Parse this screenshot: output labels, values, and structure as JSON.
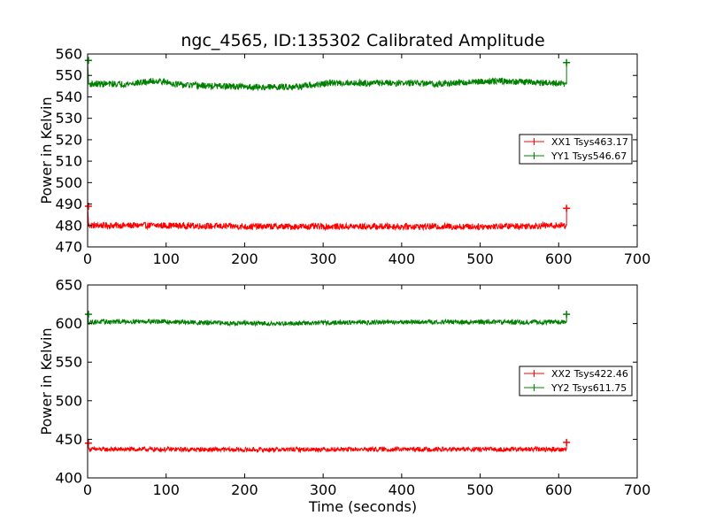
{
  "chart_data": [
    {
      "type": "line",
      "title": "ngc_4565, ID:135302 Calibrated Amplitude",
      "xlabel": "",
      "ylabel": "Power in Kelvin",
      "xlim": [
        0,
        700
      ],
      "ylim": [
        470,
        560
      ],
      "x_ticks": [
        0,
        100,
        200,
        300,
        400,
        500,
        600,
        700
      ],
      "y_ticks": [
        470,
        480,
        490,
        500,
        510,
        520,
        530,
        540,
        550,
        560
      ],
      "legend_position": "center-right",
      "grid": false,
      "series": [
        {
          "name": "XX1 Tsys463.17",
          "color": "#ff0000",
          "x_range": [
            0,
            610
          ],
          "baseline": [
            [
              0,
              480
            ],
            [
              100,
              480
            ],
            [
              200,
              479.5
            ],
            [
              300,
              479.5
            ],
            [
              400,
              479.5
            ],
            [
              500,
              479.5
            ],
            [
              600,
              480
            ],
            [
              610,
              480
            ]
          ],
          "noise": 1.5,
          "spikes": [
            [
              1,
              489
            ],
            [
              610,
              488
            ]
          ]
        },
        {
          "name": "YY1 Tsys546.67",
          "color": "#008000",
          "x_range": [
            0,
            610
          ],
          "baseline": [
            [
              0,
              546
            ],
            [
              50,
              546
            ],
            [
              90,
              547.5
            ],
            [
              120,
              545.5
            ],
            [
              160,
              545
            ],
            [
              230,
              544.5
            ],
            [
              280,
              545
            ],
            [
              310,
              546.5
            ],
            [
              400,
              546.5
            ],
            [
              450,
              546
            ],
            [
              520,
              547.5
            ],
            [
              580,
              546.5
            ],
            [
              610,
              546
            ]
          ],
          "noise": 1.5,
          "spikes": [
            [
              1,
              557
            ],
            [
              610,
              556
            ]
          ]
        }
      ]
    },
    {
      "type": "line",
      "title": "",
      "xlabel": "Time (seconds)",
      "ylabel": "Power in Kelvin",
      "xlim": [
        0,
        700
      ],
      "ylim": [
        400,
        650
      ],
      "x_ticks": [
        0,
        100,
        200,
        300,
        400,
        500,
        600,
        700
      ],
      "y_ticks": [
        400,
        450,
        500,
        550,
        600,
        650
      ],
      "legend_position": "center-right",
      "grid": false,
      "series": [
        {
          "name": "XX2 Tsys422.46",
          "color": "#ff0000",
          "x_range": [
            0,
            610
          ],
          "baseline": [
            [
              0,
              437
            ],
            [
              100,
              437
            ],
            [
              200,
              436.5
            ],
            [
              300,
              437
            ],
            [
              400,
              437
            ],
            [
              500,
              437
            ],
            [
              610,
              437
            ]
          ],
          "noise": 3,
          "spikes": [
            [
              1,
              445
            ],
            [
              610,
              446
            ]
          ]
        },
        {
          "name": "YY2 Tsys611.75",
          "color": "#008000",
          "x_range": [
            0,
            610
          ],
          "baseline": [
            [
              0,
              602
            ],
            [
              80,
              603
            ],
            [
              150,
              601
            ],
            [
              230,
              600
            ],
            [
              300,
              601
            ],
            [
              400,
              602
            ],
            [
              500,
              602
            ],
            [
              610,
              602
            ]
          ],
          "noise": 3,
          "spikes": [
            [
              1,
              612
            ],
            [
              610,
              612
            ]
          ]
        }
      ]
    }
  ]
}
